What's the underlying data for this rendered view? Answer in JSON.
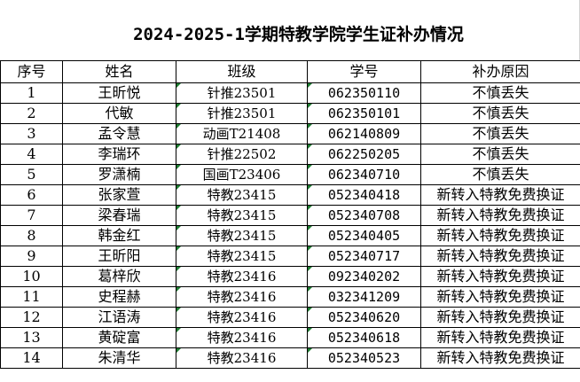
{
  "title": "2024-2025-1学期特教学院学生证补办情况",
  "columns": [
    "序号",
    "姓名",
    "班级",
    "学号",
    "补办原因"
  ],
  "rows": [
    {
      "no": "1",
      "name": "王昕悦",
      "class": "针推23501",
      "id": "062350110",
      "reason": "不慎丢失"
    },
    {
      "no": "2",
      "name": "代敏",
      "class": "针推23501",
      "id": "062350101",
      "reason": "不慎丢失"
    },
    {
      "no": "3",
      "name": "孟令慧",
      "class": "动画T21408",
      "id": "062140809",
      "reason": "不慎丢失"
    },
    {
      "no": "4",
      "name": "李瑞环",
      "class": "针推22502",
      "id": "062250205",
      "reason": "不慎丢失"
    },
    {
      "no": "5",
      "name": "罗潇楠",
      "class": "国画T23406",
      "id": "062340710",
      "reason": "不慎丢失"
    },
    {
      "no": "6",
      "name": "张家萱",
      "class": "特教23415",
      "id": "052340418",
      "reason": "新转入特教免费换证"
    },
    {
      "no": "7",
      "name": "梁春瑞",
      "class": "特教23415",
      "id": "052340708",
      "reason": "新转入特教免费换证"
    },
    {
      "no": "8",
      "name": "韩金红",
      "class": "特教23415",
      "id": "052340405",
      "reason": "新转入特教免费换证"
    },
    {
      "no": "9",
      "name": "王昕阳",
      "class": "特教23415",
      "id": "052340717",
      "reason": "新转入特教免费换证"
    },
    {
      "no": "10",
      "name": "葛梓欣",
      "class": "特教23416",
      "id": "092340202",
      "reason": "新转入特教免费换证"
    },
    {
      "no": "11",
      "name": "史程赫",
      "class": "特教23416",
      "id": "032341209",
      "reason": "新转入特教免费换证"
    },
    {
      "no": "12",
      "name": "江语涛",
      "class": "特教23416",
      "id": "052340620",
      "reason": "新转入特教免费换证"
    },
    {
      "no": "13",
      "name": "黄碇富",
      "class": "特教23416",
      "id": "052340618",
      "reason": "新转入特教免费换证"
    },
    {
      "no": "14",
      "name": "朱清华",
      "class": "特教23416",
      "id": "052340523",
      "reason": "新转入特教免费换证"
    }
  ],
  "colors": {
    "grid_border": "#000000",
    "number_stored_as_text_marker": "#1e7d32"
  }
}
